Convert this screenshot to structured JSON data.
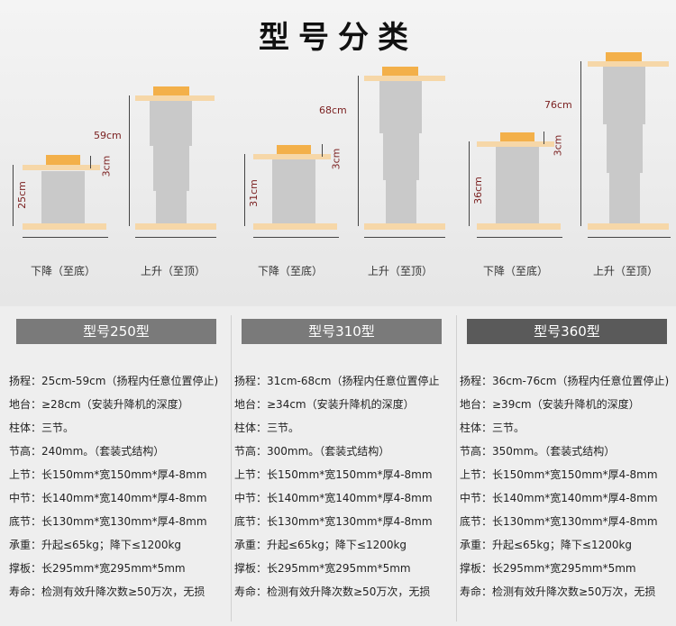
{
  "title": "型号分类",
  "figures": {
    "down_label": "下降（至底）",
    "up_label": "上升（至顶）",
    "dims": {
      "m250_min": "25cm",
      "m250_gap": "3cm",
      "m250_max": "59cm",
      "m310_min": "31cm",
      "m310_gap": "3cm",
      "m310_max": "68cm",
      "m360_min": "36cm",
      "m360_gap": "3cm",
      "m360_max": "76cm"
    }
  },
  "models": [
    {
      "header": "型号250型",
      "header_color": "#7a7a7a",
      "rows": [
        "扬程：25cm-59cm（扬程内任意位置停止)",
        "地台：≥28cm（安装升降机的深度）",
        "柱体：三节。",
        "节高：240mm。（套装式结构）",
        "上节：长150mm*宽150mm*厚4-8mm",
        "中节：长140mm*宽140mm*厚4-8mm",
        "底节：长130mm*宽130mm*厚4-8mm",
        "承重：升起≤65kg；降下≤1200kg",
        "撑板：长295mm*宽295mm*5mm",
        "寿命：检测有效升降次数≥50万次，无损"
      ]
    },
    {
      "header": "型号310型",
      "header_color": "#7a7a7a",
      "rows": [
        "扬程：31cm-68cm（扬程内任意位置停止",
        "地台：≥34cm（安装升降机的深度）",
        "柱体：三节。",
        "节高：300mm。（套装式结构）",
        "上节：长150mm*宽150mm*厚4-8mm",
        "中节：长140mm*宽140mm*厚4-8mm",
        "底节：长130mm*宽130mm*厚4-8mm",
        "承重：升起≤65kg；降下≤1200kg",
        "撑板：长295mm*宽295mm*5mm",
        "寿命：检测有效升降次数≥50万次，无损"
      ]
    },
    {
      "header": "型号360型",
      "header_color": "#5a5a5a",
      "rows": [
        "扬程：36cm-76cm（扬程内任意位置停止)",
        "地台：≥39cm（安装升降机的深度）",
        "柱体：三节。",
        "节高：350mm。（套装式结构）",
        "上节：长150mm*宽150mm*厚4-8mm",
        "中节：长140mm*宽140mm*厚4-8mm",
        "底节：长130mm*宽130mm*厚4-8mm",
        "承重：升起≤65kg；降下≤1200kg",
        "撑板：长295mm*宽295mm*5mm",
        "寿命：检测有效升降次数≥50万次，无损"
      ]
    }
  ]
}
